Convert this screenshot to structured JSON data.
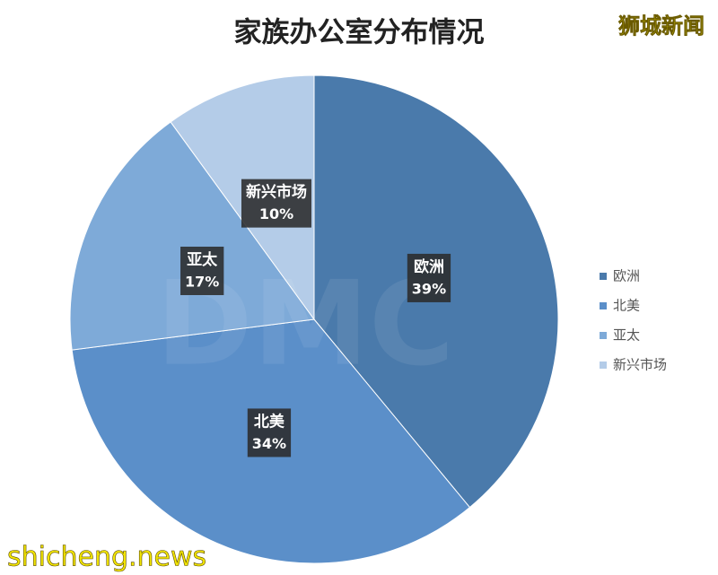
{
  "chart_data": {
    "type": "pie",
    "title": "家族办公室分布情况",
    "categories": [
      "欧洲",
      "北美",
      "亚太",
      "新兴市场"
    ],
    "values": [
      39,
      34,
      17,
      10
    ],
    "value_labels": [
      "39%",
      "34%",
      "17%",
      "10%"
    ],
    "colors": [
      "#4a7aab",
      "#5b8fc9",
      "#7eaad8",
      "#b4cce8"
    ],
    "legend": "right"
  },
  "watermarks": {
    "logo": "狮城新闻",
    "site": "shicheng.news",
    "background": "DMC"
  }
}
